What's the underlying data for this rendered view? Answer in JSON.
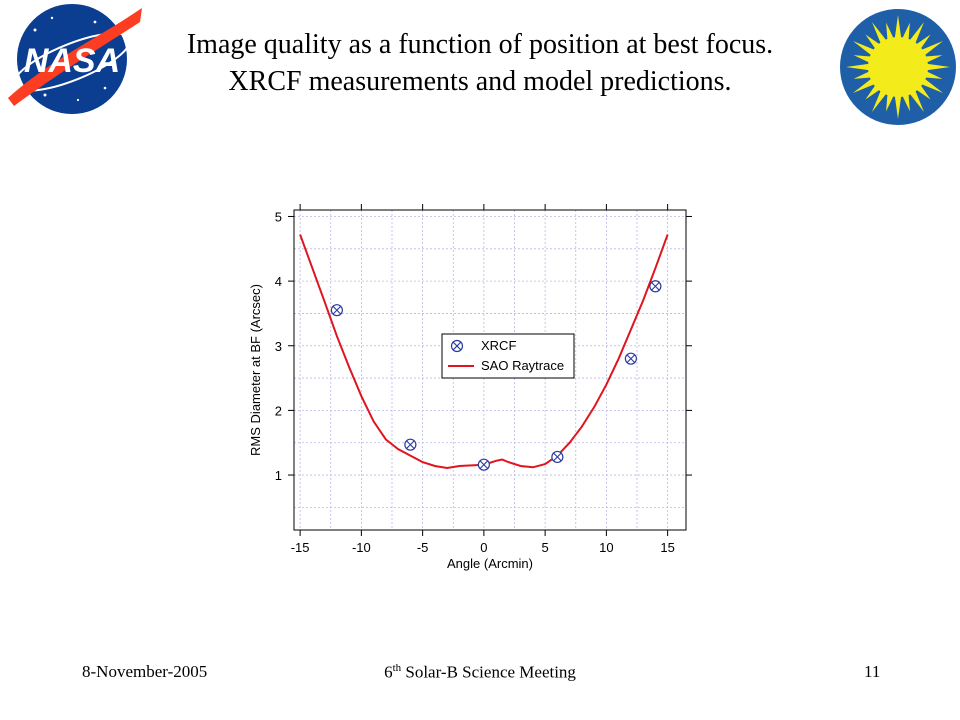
{
  "slide": {
    "title": "Image quality as a function of position at best focus. XRCF measurements and model predictions.",
    "footer": {
      "date": "8-November-2005",
      "meeting_prefix": "6",
      "meeting_sup": "th",
      "meeting_suffix": " Solar-B Science Meeting",
      "page": "11"
    },
    "logos": {
      "left": {
        "text": "NASA",
        "icon": "nasa-meatball-logo",
        "colors": {
          "blue": "#0b3d91",
          "red": "#fc3d21"
        }
      },
      "right": {
        "icon": "smithsonian-sun-logo",
        "colors": {
          "blue": "#1f5fa8",
          "yellow": "#f4ec1a"
        }
      }
    }
  },
  "chart_data": {
    "type": "scatter",
    "title": "",
    "xlabel": "Angle (Arcmin)",
    "ylabel": "RMS Diameter at BF (Arcsec)",
    "xlim": [
      -15.5,
      16.5
    ],
    "ylim": [
      0.15,
      5.1
    ],
    "xticks": [
      -15,
      -10,
      -5,
      0,
      5,
      10,
      15
    ],
    "yticks": [
      1,
      2,
      3,
      4,
      5
    ],
    "grid": true,
    "legend_position": "center",
    "series": [
      {
        "name": "XRCF",
        "kind": "marker",
        "marker": "circle-x",
        "color": "#2b3aa0",
        "x": [
          -12,
          -6,
          0,
          6,
          12,
          14
        ],
        "y": [
          3.55,
          1.47,
          1.16,
          1.28,
          2.8,
          3.92
        ]
      },
      {
        "name": "SAO Raytrace",
        "kind": "line",
        "color": "#e0141e",
        "x": [
          -15,
          -14,
          -13,
          -12,
          -11,
          -10,
          -9,
          -8,
          -7,
          -6,
          -5,
          -4,
          -3,
          -2,
          -1,
          0,
          1,
          1.5,
          2,
          3,
          4,
          5,
          6,
          7,
          8,
          9,
          10,
          11,
          12,
          13,
          14,
          15
        ],
        "y": [
          4.72,
          4.2,
          3.68,
          3.15,
          2.67,
          2.22,
          1.83,
          1.55,
          1.4,
          1.3,
          1.2,
          1.14,
          1.11,
          1.14,
          1.15,
          1.16,
          1.22,
          1.24,
          1.2,
          1.14,
          1.12,
          1.17,
          1.3,
          1.5,
          1.75,
          2.05,
          2.4,
          2.8,
          3.25,
          3.7,
          4.2,
          4.72
        ]
      }
    ]
  }
}
